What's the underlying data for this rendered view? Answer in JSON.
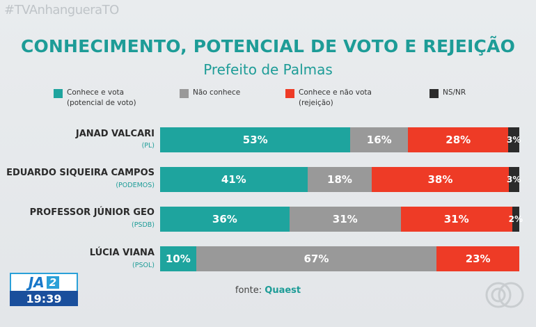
{
  "hashtag": "#TVAnhangueraTO",
  "chart_data": {
    "type": "bar",
    "orientation": "horizontal",
    "stacked": true,
    "title": "CONHECIMENTO, POTENCIAL DE VOTO E REJEIÇÃO",
    "subtitle": "Prefeito de Palmas",
    "legend_position": "top",
    "legend": [
      {
        "line1": "Conhece e vota",
        "line2": "(potencial de voto)",
        "color": "#1ea49e"
      },
      {
        "line1": "Não conhece",
        "line2": "",
        "color": "#999999"
      },
      {
        "line1": "Conhece e não vota",
        "line2": "(rejeição)",
        "color": "#ee3b26"
      },
      {
        "line1": "NS/NR",
        "line2": "",
        "color": "#2b2b2b"
      }
    ],
    "categories": [
      {
        "name": "JANAD VALCARI",
        "party": "(PL)"
      },
      {
        "name": "EDUARDO SIQUEIRA CAMPOS",
        "party": "(PODEMOS)"
      },
      {
        "name": "PROFESSOR JÚNIOR GEO",
        "party": "(PSDB)"
      },
      {
        "name": "LÚCIA VIANA",
        "party": "(PSOL)"
      }
    ],
    "series": [
      {
        "name": "Conhece e vota (potencial de voto)",
        "color": "#1ea49e",
        "values": [
          53,
          41,
          36,
          10
        ],
        "labels": [
          "53%",
          "41%",
          "36%",
          "10%"
        ]
      },
      {
        "name": "Não conhece",
        "color": "#999999",
        "values": [
          16,
          18,
          31,
          67
        ],
        "labels": [
          "16%",
          "18%",
          "31%",
          "67%"
        ]
      },
      {
        "name": "Conhece e não vota (rejeição)",
        "color": "#ee3b26",
        "values": [
          28,
          38,
          31,
          23
        ],
        "labels": [
          "28%",
          "38%",
          "31%",
          "23%"
        ]
      },
      {
        "name": "NS/NR",
        "color": "#2b2b2b",
        "values": [
          3,
          3,
          2,
          0
        ],
        "labels": [
          "3%",
          "3%",
          "2%",
          ""
        ]
      }
    ]
  },
  "source": {
    "prefix": "fonte:",
    "name": "Quaest"
  },
  "badge": {
    "program": "JA",
    "edition": "2",
    "time": "19:39"
  }
}
